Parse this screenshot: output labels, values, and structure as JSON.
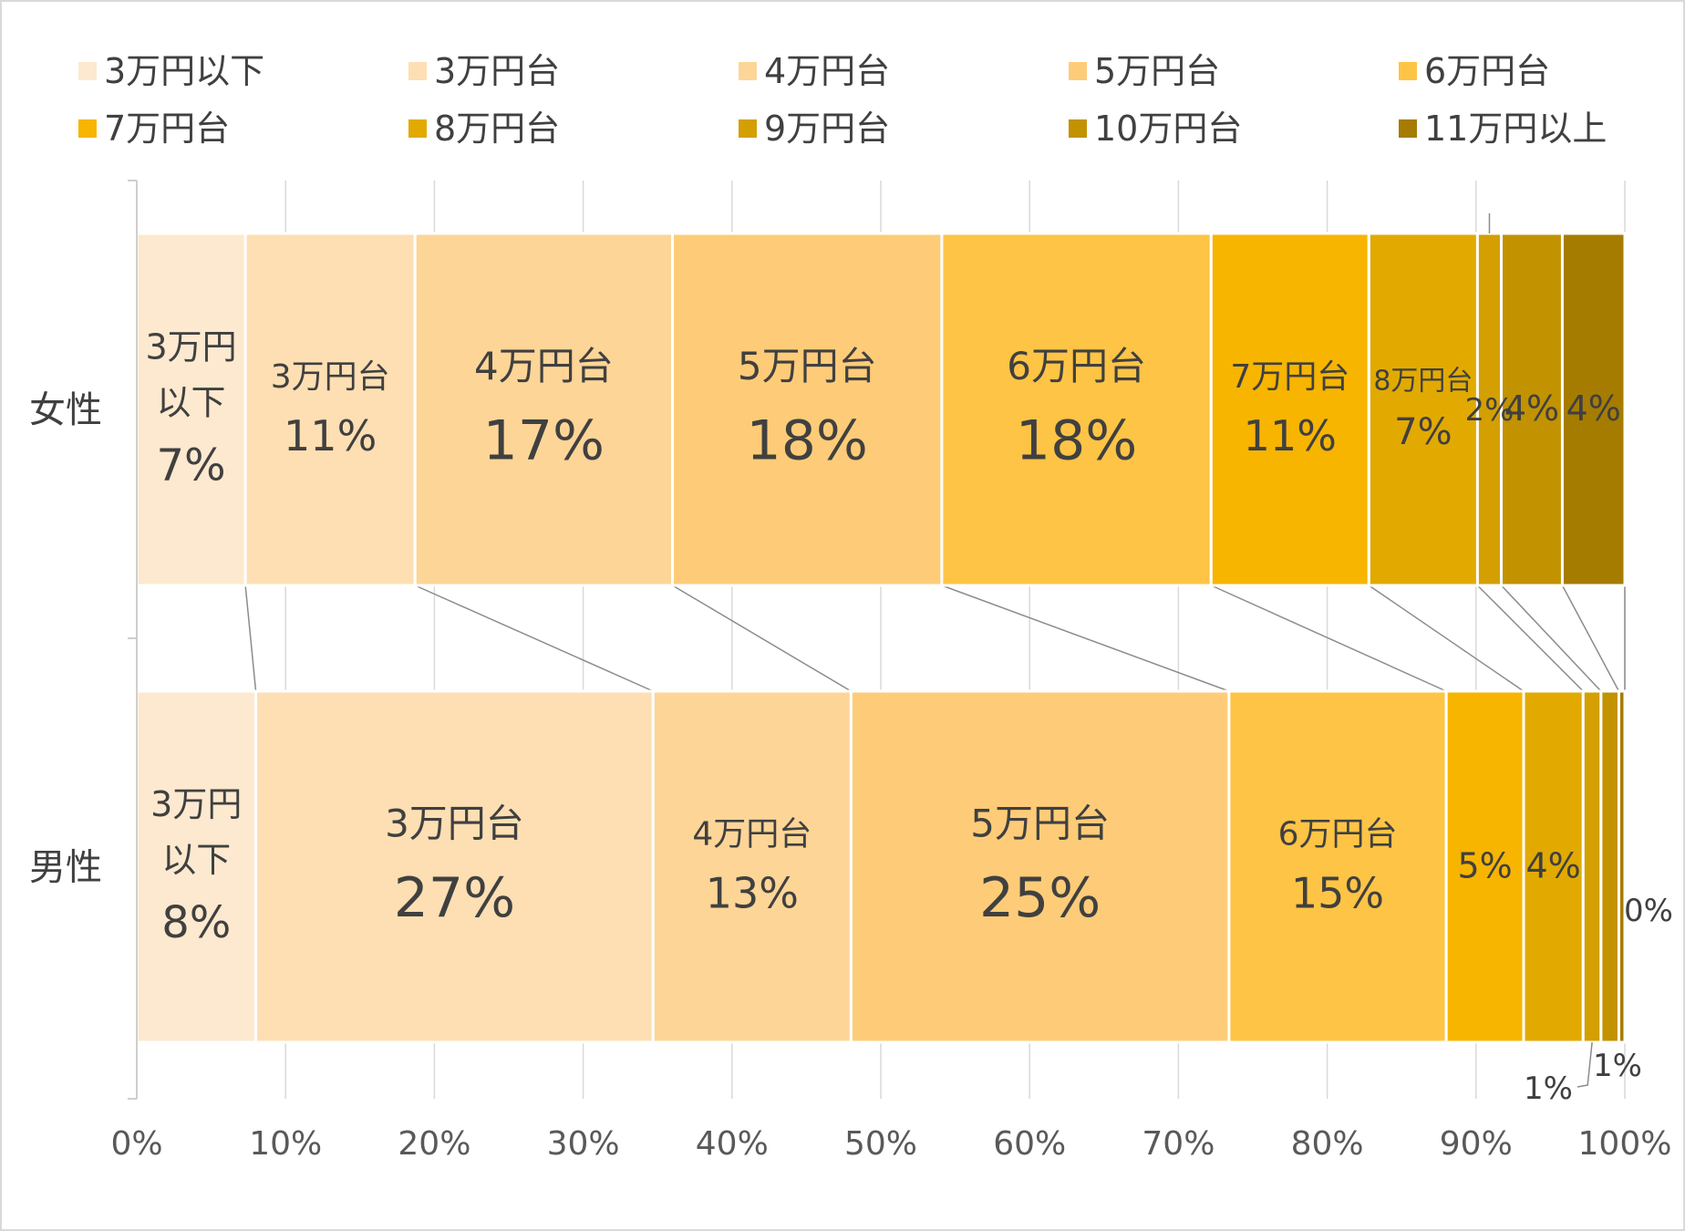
{
  "chart_data": {
    "type": "bar",
    "orientation": "horizontal",
    "stacked": "percent",
    "categories": [
      "女性",
      "男性"
    ],
    "series": [
      {
        "name": "3万円以下",
        "color": "#fde9cf",
        "values": [
          7,
          8
        ]
      },
      {
        "name": "3万円台",
        "color": "#fddfb3",
        "values": [
          11,
          27
        ]
      },
      {
        "name": "4万円台",
        "color": "#fdd597",
        "values": [
          17,
          13
        ]
      },
      {
        "name": "5万円台",
        "color": "#fecc78",
        "values": [
          18,
          25
        ]
      },
      {
        "name": "6万円台",
        "color": "#fec445",
        "values": [
          18,
          15
        ]
      },
      {
        "name": "7万円台",
        "color": "#f7b500",
        "values": [
          11,
          5
        ]
      },
      {
        "name": "8万円台",
        "color": "#e2aa00",
        "values": [
          7,
          4
        ]
      },
      {
        "name": "9万円台",
        "color": "#d49f00",
        "values": [
          2,
          1
        ]
      },
      {
        "name": "10万円台",
        "color": "#c29200",
        "values": [
          4,
          1
        ]
      },
      {
        "name": "11万円以上",
        "color": "#a67c00",
        "values": [
          4,
          0
        ]
      }
    ],
    "cumulative_fractions": [
      [
        0.073,
        0.187,
        0.36,
        0.541,
        0.722,
        0.828,
        0.901,
        0.917,
        0.958,
        1.0
      ],
      [
        0.08,
        0.347,
        0.48,
        0.734,
        0.88,
        0.932,
        0.972,
        0.984,
        0.996,
        1.0
      ]
    ],
    "data_labels": [
      [
        "3万円\n以下\n7%",
        "3万円台\n11%",
        "4万円台\n17%",
        "5万円台\n18%",
        "6万円台\n18%",
        "7万円台\n11%",
        "8万円台\n7%",
        "2%",
        "4%",
        "4%"
      ],
      [
        "3万円\n以下\n8%",
        "3万円台\n27%",
        "4万円台\n13%",
        "5万円台\n25%",
        "6万円台\n15%",
        "5%",
        "4%",
        "1%",
        "1%",
        "0%"
      ]
    ],
    "x_ticks": [
      "0%",
      "10%",
      "20%",
      "30%",
      "40%",
      "50%",
      "60%",
      "70%",
      "80%",
      "90%",
      "100%"
    ],
    "xlim": [
      0,
      100
    ],
    "grid": true,
    "legend_position": "top",
    "series_lines": true
  }
}
